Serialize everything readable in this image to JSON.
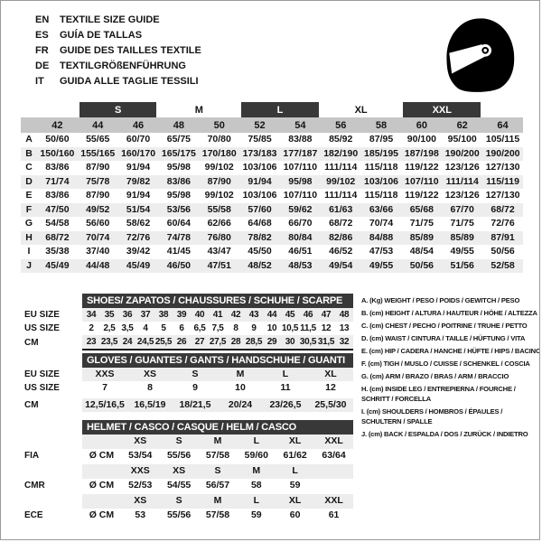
{
  "colors": {
    "bar": "#383838",
    "bar_text": "#ffffff",
    "size_row_bg": "#c6c6c6",
    "stripe": "#ededed"
  },
  "header": {
    "languages": [
      {
        "code": "EN",
        "title": "TEXTILE SIZE GUIDE"
      },
      {
        "code": "ES",
        "title": "GUÍA DE TALLAS"
      },
      {
        "code": "FR",
        "title": "GUIDE DES TAILLES TEXTILE"
      },
      {
        "code": "DE",
        "title": "TEXTILGRÖßENFÜHRUNG"
      },
      {
        "code": "IT",
        "title": "GUIDA ALLE TAGLIE TESSILI"
      }
    ],
    "helmet_icon": "racing-helmet"
  },
  "main_table": {
    "size_groups": [
      {
        "label": "",
        "span": 1,
        "boxed": false
      },
      {
        "label": "S",
        "span": 2,
        "boxed": true
      },
      {
        "label": "M",
        "span": 2,
        "boxed": false
      },
      {
        "label": "L",
        "span": 2,
        "boxed": true
      },
      {
        "label": "XL",
        "span": 2,
        "boxed": false
      },
      {
        "label": "XXL",
        "span": 2,
        "boxed": true
      },
      {
        "label": "",
        "span": 1,
        "boxed": false
      }
    ],
    "sizes": [
      "42",
      "44",
      "46",
      "48",
      "50",
      "52",
      "54",
      "56",
      "58",
      "60",
      "62",
      "64"
    ],
    "rows": [
      {
        "letter": "A",
        "values": [
          "50/60",
          "55/65",
          "60/70",
          "65/75",
          "70/80",
          "75/85",
          "83/88",
          "85/92",
          "87/95",
          "90/100",
          "95/100",
          "105/115"
        ]
      },
      {
        "letter": "B",
        "values": [
          "150/160",
          "155/165",
          "160/170",
          "165/175",
          "170/180",
          "173/183",
          "177/187",
          "182/190",
          "185/195",
          "187/198",
          "190/200",
          "190/200"
        ]
      },
      {
        "letter": "C",
        "values": [
          "83/86",
          "87/90",
          "91/94",
          "95/98",
          "99/102",
          "103/106",
          "107/110",
          "111/114",
          "115/118",
          "119/122",
          "123/126",
          "127/130"
        ]
      },
      {
        "letter": "D",
        "values": [
          "71/74",
          "75/78",
          "79/82",
          "83/86",
          "87/90",
          "91/94",
          "95/98",
          "99/102",
          "103/106",
          "107/110",
          "111/114",
          "115/119"
        ]
      },
      {
        "letter": "E",
        "values": [
          "83/86",
          "87/90",
          "91/94",
          "95/98",
          "99/102",
          "103/106",
          "107/110",
          "111/114",
          "115/118",
          "119/122",
          "123/126",
          "127/130"
        ]
      },
      {
        "letter": "F",
        "values": [
          "47/50",
          "49/52",
          "51/54",
          "53/56",
          "55/58",
          "57/60",
          "59/62",
          "61/63",
          "63/66",
          "65/68",
          "67/70",
          "68/72"
        ]
      },
      {
        "letter": "G",
        "values": [
          "54/58",
          "56/60",
          "58/62",
          "60/64",
          "62/66",
          "64/68",
          "66/70",
          "68/72",
          "70/74",
          "71/75",
          "71/75",
          "72/76"
        ]
      },
      {
        "letter": "H",
        "values": [
          "68/72",
          "70/74",
          "72/76",
          "74/78",
          "76/80",
          "78/82",
          "80/84",
          "82/86",
          "84/88",
          "85/89",
          "85/89",
          "87/91"
        ]
      },
      {
        "letter": "I",
        "values": [
          "35/38",
          "37/40",
          "39/42",
          "41/45",
          "43/47",
          "45/50",
          "46/51",
          "46/52",
          "47/53",
          "48/54",
          "49/55",
          "50/56"
        ]
      },
      {
        "letter": "J",
        "values": [
          "45/49",
          "44/48",
          "45/49",
          "46/50",
          "47/51",
          "48/52",
          "48/53",
          "49/54",
          "49/55",
          "50/56",
          "51/56",
          "52/58"
        ]
      }
    ]
  },
  "shoes": {
    "title": "SHOES/ ZAPATOS / CHAUSSURES / SCHUHE / SCARPE",
    "rows": [
      {
        "label": "EU SIZE",
        "cells": [
          "34",
          "35",
          "36",
          "37",
          "38",
          "39",
          "40",
          "41",
          "42",
          "43",
          "44",
          "45",
          "46",
          "47",
          "48"
        ]
      },
      {
        "label": "US SIZE",
        "cells": [
          "2",
          "2,5",
          "3,5",
          "4",
          "5",
          "6",
          "6,5",
          "7,5",
          "8",
          "9",
          "10",
          "10,5",
          "11,5",
          "12",
          "13"
        ]
      },
      {
        "label": "CM",
        "cells": [
          "23",
          "23,5",
          "24",
          "24,5",
          "25,5",
          "26",
          "27",
          "27,5",
          "28",
          "28,5",
          "29",
          "30",
          "30,5",
          "31,5",
          "32"
        ]
      }
    ]
  },
  "gloves": {
    "title": "GLOVES / GUANTES / GANTS / HANDSCHUHE / GUANTI",
    "rows": [
      {
        "label": "EU SIZE",
        "cells": [
          "XXS",
          "XS",
          "S",
          "M",
          "L",
          "XL"
        ]
      },
      {
        "label": "US SIZE",
        "cells": [
          "7",
          "8",
          "9",
          "10",
          "11",
          "12"
        ]
      },
      {
        "label": "CM",
        "cells": [
          "12,5/16,5",
          "16,5/19",
          "18/21,5",
          "20/24",
          "23/26,5",
          "25,5/30"
        ]
      }
    ]
  },
  "helmet": {
    "title": "HELMET / CASCO / CASQUE / HELM / CASCO",
    "rows": [
      {
        "label": "",
        "cells": [
          "",
          "XS",
          "S",
          "M",
          "L",
          "XL",
          "XXL"
        ]
      },
      {
        "label": "FIA",
        "cells": [
          "Ø CM",
          "53/54",
          "55/56",
          "57/58",
          "59/60",
          "61/62",
          "63/64"
        ]
      },
      {
        "label": "",
        "cells": [
          "",
          "XXS",
          "XS",
          "S",
          "M",
          "L",
          ""
        ]
      },
      {
        "label": "CMR",
        "cells": [
          "Ø CM",
          "52/53",
          "54/55",
          "56/57",
          "58",
          "59",
          ""
        ]
      },
      {
        "label": "",
        "cells": [
          "",
          "XS",
          "S",
          "M",
          "L",
          "XL",
          "XXL"
        ]
      },
      {
        "label": "ECE",
        "cells": [
          "Ø CM",
          "53",
          "55/56",
          "57/58",
          "59",
          "60",
          "61"
        ]
      }
    ]
  },
  "legend": {
    "items": [
      {
        "lines": [
          "A. (Kg) WEIGHT / PESO / POIDS / GEWITCH / PESO"
        ]
      },
      {
        "lines": [
          "B. (cm) HEIGHT / ALTURA / HAUTEUR / HÖHE / ALTEZZA"
        ]
      },
      {
        "lines": [
          "C. (cm) CHEST / PECHO / POITRINE / TRUHE / PETTO"
        ]
      },
      {
        "lines": [
          "D. (cm) WAIST / CINTURA / TAILLE / HÜFTUNG / VITA"
        ]
      },
      {
        "lines": [
          "E. (cm) HIP / CADERA / HANCHE / HÜFTE / HIPS /  BACINO"
        ]
      },
      {
        "lines": [
          "F. (cm) TIGH / MUSLO / CUISSE / SCHENKEL / COSCIA"
        ]
      },
      {
        "lines": [
          "G. (cm) ARM  / BRAZO / BRAS / ARM / BRACCIO"
        ]
      },
      {
        "lines": [
          "H. (cm) INSIDE LEG / ENTREPIERNA / FOURCHE /",
          "SCHRITT / FORCELLA"
        ]
      },
      {
        "lines": [
          "I.  (cm) SHOULDERS / HOMBROS / ÉPAULES /",
          "SCHULTERN / SPALLE"
        ]
      },
      {
        "lines": [
          "J. (cm) BACK / ESPALDA / DOS / ZURÜCK / INDIETRO"
        ]
      }
    ]
  }
}
